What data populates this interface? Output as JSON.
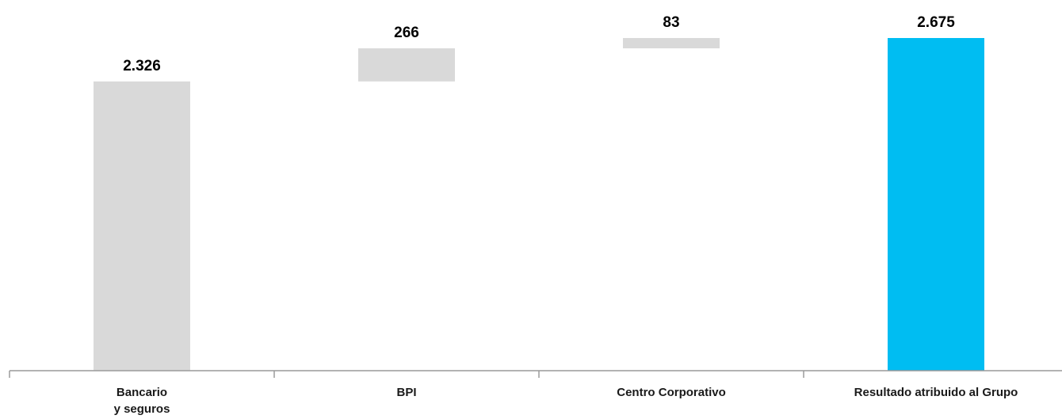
{
  "chart_data": {
    "type": "bar",
    "subtype": "waterfall",
    "title": "",
    "xlabel": "",
    "ylabel": "",
    "ylim": [
      0,
      2675
    ],
    "grid": false,
    "categories": [
      [
        "Bancario",
        "y seguros"
      ],
      [
        "BPI"
      ],
      [
        "Centro Corporativo"
      ],
      [
        "Resultado atribuido al Grupo"
      ]
    ],
    "values": [
      2326,
      266,
      83,
      2675
    ],
    "value_labels": [
      "2.326",
      "266",
      "83",
      "2.675"
    ],
    "bar_kind": [
      "increment",
      "increment",
      "increment",
      "total"
    ],
    "colors": {
      "increment": "#d9d9d9",
      "total": "#00bdf2",
      "axis": "#9a9a9a",
      "text": "#000000"
    }
  }
}
